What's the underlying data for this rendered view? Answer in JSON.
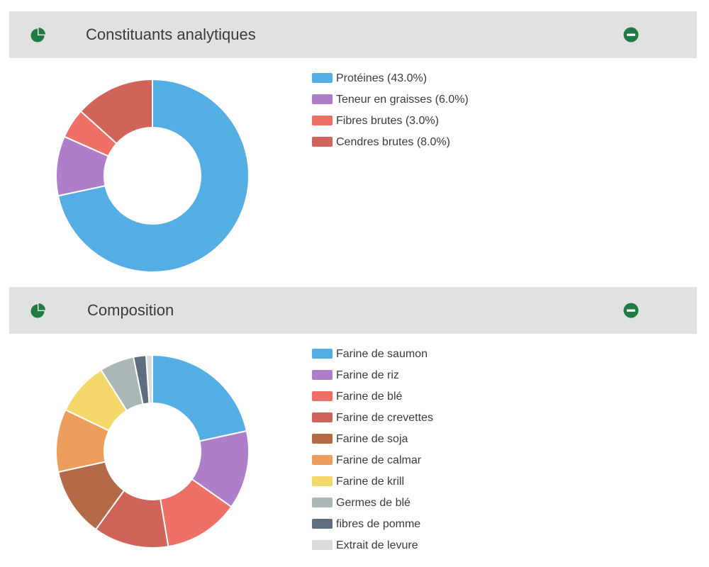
{
  "colors": {
    "header_bg": "#dfe2df",
    "icon_green": "#1f7a45"
  },
  "panels": [
    {
      "title": "Constituants analytiques",
      "icon": "pie-chart-icon",
      "collapse_icon": "minus-circle-icon"
    },
    {
      "title": "Composition",
      "icon": "pie-chart-icon",
      "collapse_icon": "minus-circle-icon"
    }
  ],
  "chart_data": [
    {
      "type": "pie",
      "style": "donut",
      "title": "Constituants analytiques",
      "legend_position": "right",
      "slices": [
        {
          "label": "Protéines (43.0%)",
          "value": 43.0,
          "color": "#54aee3"
        },
        {
          "label": "Teneur en graisses (6.0%)",
          "value": 6.0,
          "color": "#af7ec8"
        },
        {
          "label": "Fibres brutes (3.0%)",
          "value": 3.0,
          "color": "#ed6f66"
        },
        {
          "label": "Cendres brutes (8.0%)",
          "value": 8.0,
          "color": "#d0645b"
        }
      ]
    },
    {
      "type": "pie",
      "style": "donut",
      "title": "Composition",
      "legend_position": "right",
      "slices": [
        {
          "label": "Farine de saumon",
          "value": 20.5,
          "color": "#54aee3"
        },
        {
          "label": "Farine de riz",
          "value": 12.5,
          "color": "#af7ec8"
        },
        {
          "label": "Farine de blé",
          "value": 12.0,
          "color": "#ed6f66"
        },
        {
          "label": "Farine de crevettes",
          "value": 12.0,
          "color": "#d0645b"
        },
        {
          "label": "Farine de soja",
          "value": 11.0,
          "color": "#b46a47"
        },
        {
          "label": "Farine de calmar",
          "value": 10.0,
          "color": "#ee9e5c"
        },
        {
          "label": "Farine de krill",
          "value": 8.5,
          "color": "#f5d86a"
        },
        {
          "label": "Germes de blé",
          "value": 5.5,
          "color": "#abb7b6"
        },
        {
          "label": "fibres de pomme",
          "value": 2.0,
          "color": "#5e6d80"
        },
        {
          "label": "Extrait de levure",
          "value": 1.0,
          "color": "#d9dcdc"
        }
      ]
    }
  ]
}
